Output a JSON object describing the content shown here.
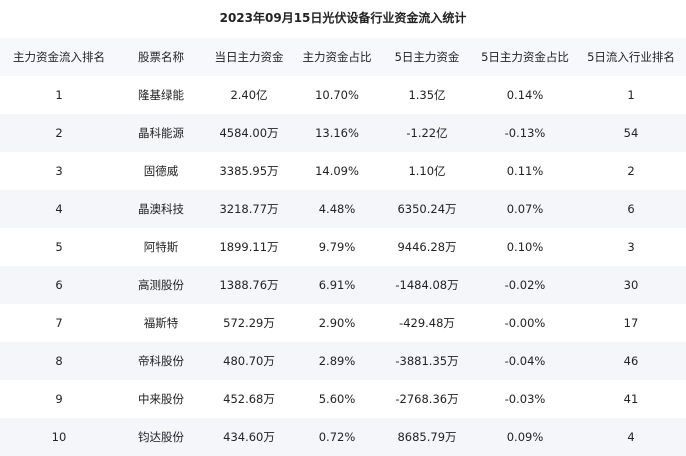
{
  "title": "2023年09月15日光伏设备行业资金流入统计",
  "table": {
    "headers": [
      "主力资金流入排名",
      "股票名称",
      "当日主力资金",
      "主力资金占比",
      "5日主力资金",
      "5日主力资金占比",
      "5日流入行业排名"
    ],
    "rows": [
      [
        "1",
        "隆基绿能",
        "2.40亿",
        "10.70%",
        "1.35亿",
        "0.14%",
        "1"
      ],
      [
        "2",
        "晶科能源",
        "4584.00万",
        "13.16%",
        "-1.22亿",
        "-0.13%",
        "54"
      ],
      [
        "3",
        "固德威",
        "3385.95万",
        "14.09%",
        "1.10亿",
        "0.11%",
        "2"
      ],
      [
        "4",
        "晶澳科技",
        "3218.77万",
        "4.48%",
        "6350.24万",
        "0.07%",
        "6"
      ],
      [
        "5",
        "阿特斯",
        "1899.11万",
        "9.79%",
        "9446.28万",
        "0.10%",
        "3"
      ],
      [
        "6",
        "高测股份",
        "1388.76万",
        "6.91%",
        "-1484.08万",
        "-0.02%",
        "30"
      ],
      [
        "7",
        "福斯特",
        "572.29万",
        "2.90%",
        "-429.48万",
        "-0.00%",
        "17"
      ],
      [
        "8",
        "帝科股份",
        "480.70万",
        "2.89%",
        "-3881.35万",
        "-0.04%",
        "46"
      ],
      [
        "9",
        "中来股份",
        "452.68万",
        "5.60%",
        "-2768.36万",
        "-0.03%",
        "41"
      ],
      [
        "10",
        "钧达股份",
        "434.60万",
        "0.72%",
        "8685.79万",
        "0.09%",
        "4"
      ]
    ]
  }
}
